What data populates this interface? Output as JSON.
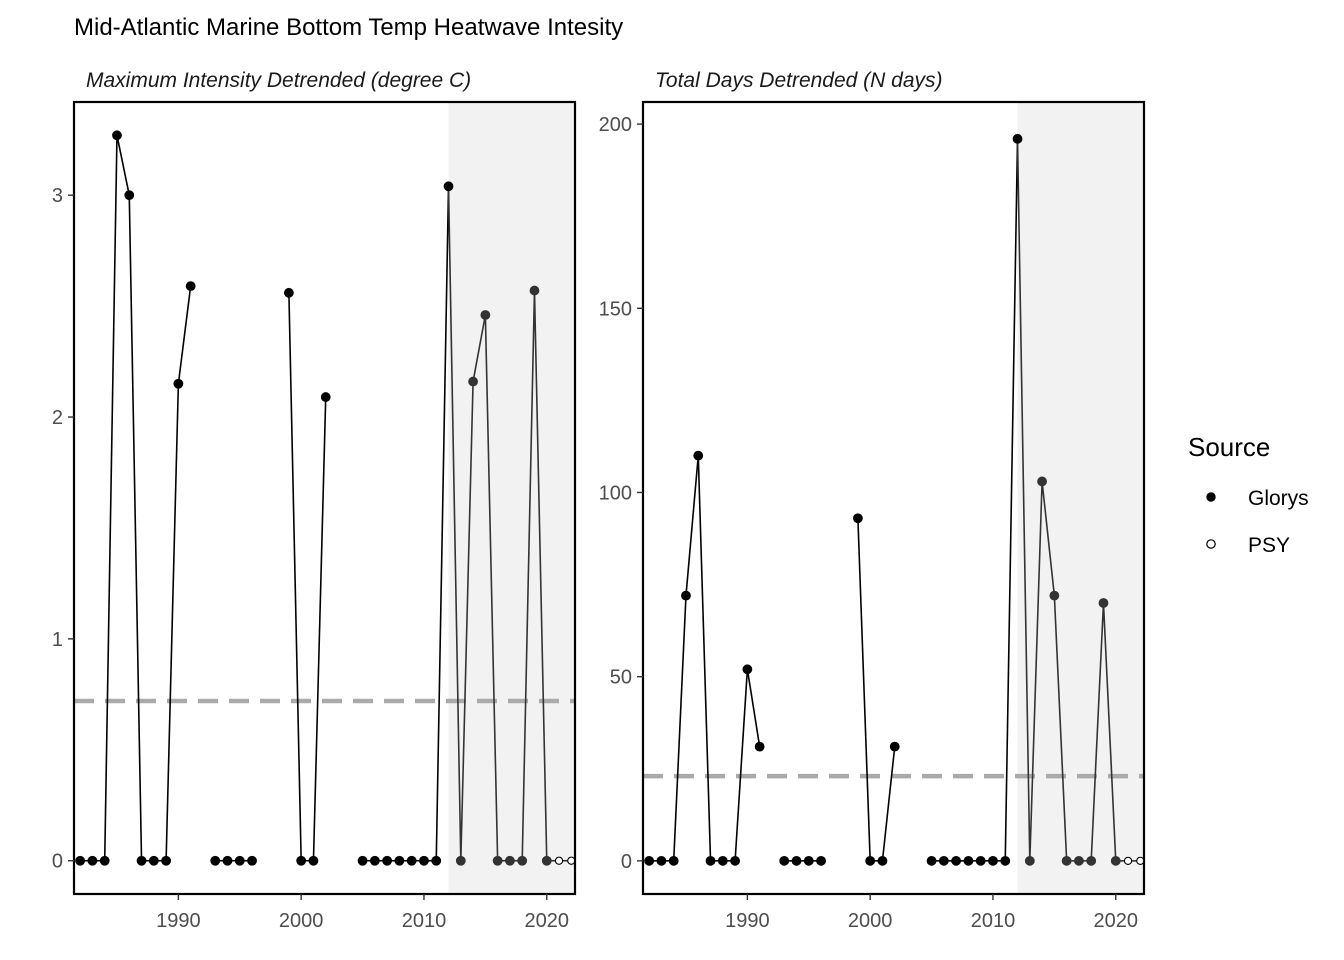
{
  "title": "Mid-Atlantic Marine Bottom Temp Heatwave Intesity",
  "legend": {
    "title": "Source",
    "items": [
      {
        "label": "Glorys",
        "marker": "filled"
      },
      {
        "label": "PSY",
        "marker": "open"
      }
    ]
  },
  "colors": {
    "line": "#000000",
    "recent_line": "#333333",
    "glorys_point": "#000000",
    "recent_point": "#333333",
    "psy_fill": "#ffffff",
    "mean_line": "#aaaaaa",
    "shade": "#f2f2f2"
  },
  "chart_data": [
    {
      "type": "line",
      "title": "Maximum Intensity Detrended (degree C)",
      "xlim": [
        1981.5,
        2022.3
      ],
      "ylim": [
        -0.15,
        3.42
      ],
      "xticks": [
        1990,
        2000,
        2010,
        2020
      ],
      "yticks": [
        0,
        1,
        2,
        3
      ],
      "shaded_x_range": [
        2012,
        2022.3
      ],
      "reference_line": 0.72,
      "grid": false,
      "series": [
        {
          "name": "Glorys",
          "marker": "filled",
          "x": [
            1982,
            1983,
            1984,
            1985,
            1986,
            1987,
            1988,
            1989,
            1990,
            1991,
            1992,
            1993,
            1994,
            1995,
            1996,
            1997,
            1998,
            1999,
            2000,
            2001,
            2002,
            2003,
            2004,
            2005,
            2006,
            2007,
            2008,
            2009,
            2010,
            2011,
            2012,
            2013,
            2014,
            2015,
            2016,
            2017,
            2018,
            2019,
            2020
          ],
          "y": [
            0,
            0,
            0,
            3.27,
            3.0,
            0,
            0,
            0,
            2.15,
            2.59,
            null,
            0,
            0,
            0,
            0,
            null,
            null,
            2.56,
            0,
            0,
            2.09,
            null,
            null,
            0,
            0,
            0,
            0,
            0,
            0,
            0,
            3.04,
            0,
            2.16,
            2.46,
            0,
            0,
            0,
            2.57,
            0
          ]
        },
        {
          "name": "PSY",
          "marker": "open",
          "x": [
            2021,
            2022
          ],
          "y": [
            0,
            0
          ]
        }
      ]
    },
    {
      "type": "line",
      "title": "Total Days Detrended (N days)",
      "xlim": [
        1981.5,
        2022.3
      ],
      "ylim": [
        -9,
        206
      ],
      "xticks": [
        1990,
        2000,
        2010,
        2020
      ],
      "yticks": [
        0,
        50,
        100,
        150,
        200
      ],
      "shaded_x_range": [
        2012,
        2022.3
      ],
      "reference_line": 23,
      "grid": false,
      "series": [
        {
          "name": "Glorys",
          "marker": "filled",
          "x": [
            1982,
            1983,
            1984,
            1985,
            1986,
            1987,
            1988,
            1989,
            1990,
            1991,
            1992,
            1993,
            1994,
            1995,
            1996,
            1997,
            1998,
            1999,
            2000,
            2001,
            2002,
            2003,
            2004,
            2005,
            2006,
            2007,
            2008,
            2009,
            2010,
            2011,
            2012,
            2013,
            2014,
            2015,
            2016,
            2017,
            2018,
            2019,
            2020
          ],
          "y": [
            0,
            0,
            0,
            72,
            110,
            0,
            0,
            0,
            52,
            31,
            null,
            0,
            0,
            0,
            0,
            null,
            null,
            93,
            0,
            0,
            31,
            null,
            null,
            0,
            0,
            0,
            0,
            0,
            0,
            0,
            196,
            0,
            103,
            72,
            0,
            0,
            0,
            70,
            0
          ]
        },
        {
          "name": "PSY",
          "marker": "open",
          "x": [
            2021,
            2022
          ],
          "y": [
            0,
            0
          ]
        }
      ]
    }
  ]
}
